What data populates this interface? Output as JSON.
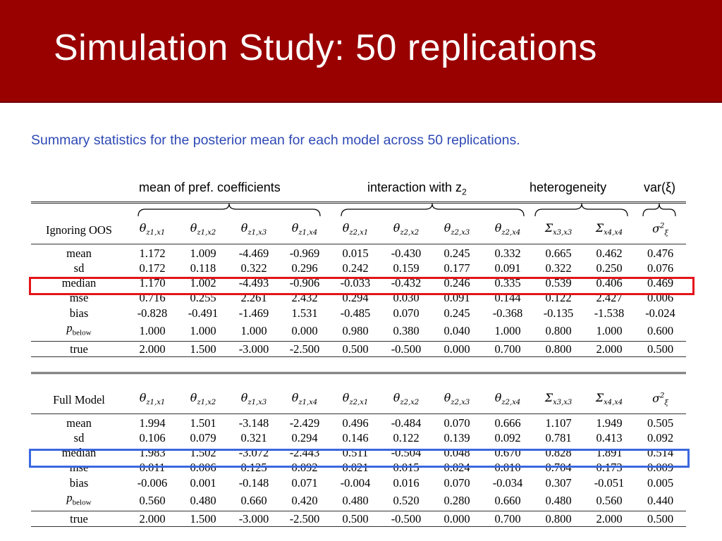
{
  "slide": {
    "title": "Simulation Study: 50 replications",
    "subtitle": "Summary statistics for the posterior mean for each model across 50 replications."
  },
  "groups": {
    "pref": "mean of pref. coefficients",
    "interaction": "interaction with z",
    "interaction_sub": "2",
    "heterogeneity": "heterogeneity",
    "var": "var(ξ)"
  },
  "columns": [
    {
      "sym": "θ",
      "sub": "z1,x1"
    },
    {
      "sym": "θ",
      "sub": "z1,x2"
    },
    {
      "sym": "θ",
      "sub": "z1,x3"
    },
    {
      "sym": "θ",
      "sub": "z1,x4"
    },
    {
      "sym": "θ",
      "sub": "z2,x1"
    },
    {
      "sym": "θ",
      "sub": "z2,x2"
    },
    {
      "sym": "θ",
      "sub": "z2,x3"
    },
    {
      "sym": "θ",
      "sub": "z2,x4"
    },
    {
      "sym": "Σ",
      "sub": "x3,x3"
    },
    {
      "sym": "Σ",
      "sub": "x4,x4"
    },
    {
      "sym": "σ",
      "sub": "ξ",
      "sup": "2"
    }
  ],
  "tables": [
    {
      "name": "Ignoring OOS",
      "rows": [
        {
          "label": "mean",
          "values": [
            "1.172",
            "1.009",
            "-4.469",
            "-0.969",
            "0.015",
            "-0.430",
            "0.245",
            "0.332",
            "0.665",
            "0.462",
            "0.476"
          ]
        },
        {
          "label": "sd",
          "values": [
            "0.172",
            "0.118",
            "0.322",
            "0.296",
            "0.242",
            "0.159",
            "0.177",
            "0.091",
            "0.322",
            "0.250",
            "0.076"
          ]
        },
        {
          "label": "median",
          "values": [
            "1.170",
            "1.002",
            "-4.493",
            "-0.906",
            "-0.033",
            "-0.432",
            "0.246",
            "0.335",
            "0.539",
            "0.406",
            "0.469"
          ]
        },
        {
          "label": "mse",
          "values": [
            "0.716",
            "0.255",
            "2.261",
            "2.432",
            "0.294",
            "0.030",
            "0.091",
            "0.144",
            "0.122",
            "2.427",
            "0.006"
          ]
        },
        {
          "label": "bias",
          "values": [
            "-0.828",
            "-0.491",
            "-1.469",
            "1.531",
            "-0.485",
            "0.070",
            "0.245",
            "-0.368",
            "-0.135",
            "-1.538",
            "-0.024"
          ]
        },
        {
          "label": "p",
          "label_sub": "below",
          "values": [
            "1.000",
            "1.000",
            "1.000",
            "0.000",
            "0.980",
            "0.380",
            "0.040",
            "1.000",
            "0.800",
            "1.000",
            "0.600"
          ]
        },
        {
          "label": "true",
          "values": [
            "2.000",
            "1.500",
            "-3.000",
            "-2.500",
            "0.500",
            "-0.500",
            "0.000",
            "0.700",
            "0.800",
            "2.000",
            "0.500"
          ]
        }
      ]
    },
    {
      "name": "Full Model",
      "rows": [
        {
          "label": "mean",
          "values": [
            "1.994",
            "1.501",
            "-3.148",
            "-2.429",
            "0.496",
            "-0.484",
            "0.070",
            "0.666",
            "1.107",
            "1.949",
            "0.505"
          ]
        },
        {
          "label": "sd",
          "values": [
            "0.106",
            "0.079",
            "0.321",
            "0.294",
            "0.146",
            "0.122",
            "0.139",
            "0.092",
            "0.781",
            "0.413",
            "0.092"
          ]
        },
        {
          "label": "median",
          "values": [
            "1.983",
            "1.502",
            "-3.072",
            "-2.443",
            "0.511",
            "-0.504",
            "0.048",
            "0.670",
            "0.828",
            "1.891",
            "0.514"
          ]
        },
        {
          "label": "mse",
          "values": [
            "0.011",
            "0.006",
            "0.125",
            "0.092",
            "0.021",
            "0.015",
            "0.024",
            "0.010",
            "0.704",
            "0.173",
            "0.009"
          ]
        },
        {
          "label": "bias",
          "values": [
            "-0.006",
            "0.001",
            "-0.148",
            "0.071",
            "-0.004",
            "0.016",
            "0.070",
            "-0.034",
            "0.307",
            "-0.051",
            "0.005"
          ]
        },
        {
          "label": "p",
          "label_sub": "below",
          "values": [
            "0.560",
            "0.480",
            "0.660",
            "0.420",
            "0.480",
            "0.520",
            "0.280",
            "0.660",
            "0.480",
            "0.560",
            "0.440"
          ]
        },
        {
          "label": "true",
          "values": [
            "2.000",
            "1.500",
            "-3.000",
            "-2.500",
            "0.500",
            "-0.500",
            "0.000",
            "0.700",
            "0.800",
            "2.000",
            "0.500"
          ]
        }
      ]
    }
  ],
  "highlight_colors": {
    "ignoring_mse": "#e4141b",
    "full_mse": "#3b68df"
  },
  "brand_color": "#990000",
  "subtitle_color": "#2e49b5"
}
